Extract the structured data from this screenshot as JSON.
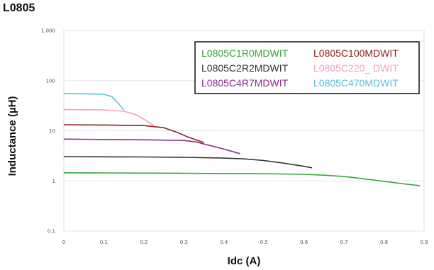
{
  "title": "L0805",
  "chart_data": {
    "type": "line",
    "xlabel": "Idc (A)",
    "ylabel": "Inductance (µH)",
    "xlim": [
      0,
      0.9
    ],
    "ylim": [
      0.1,
      1000
    ],
    "yscale": "log",
    "x_ticks": [
      "0",
      "0.1",
      "0.2",
      "0.3",
      "0.4",
      "0.5",
      "0.6",
      "0.7",
      "0.8",
      "0.9"
    ],
    "y_ticks": [
      "0.1",
      "1",
      "10",
      "100",
      "1,000"
    ],
    "grid": true,
    "legend_position": "top-right",
    "series": [
      {
        "name": "L0805C1R0MDWIT",
        "color": "#3aa43a",
        "x": [
          0,
          0.1,
          0.2,
          0.3,
          0.4,
          0.5,
          0.6,
          0.65,
          0.7,
          0.75,
          0.8,
          0.85,
          0.89
        ],
        "y": [
          1.45,
          1.44,
          1.43,
          1.42,
          1.4,
          1.39,
          1.35,
          1.3,
          1.22,
          1.1,
          0.98,
          0.87,
          0.8
        ]
      },
      {
        "name": "L0805C2R2MDWIT",
        "color": "#333333",
        "x": [
          0,
          0.1,
          0.2,
          0.3,
          0.4,
          0.45,
          0.5,
          0.55,
          0.6,
          0.62
        ],
        "y": [
          3.05,
          3.02,
          3.0,
          2.95,
          2.85,
          2.75,
          2.55,
          2.25,
          1.95,
          1.82
        ]
      },
      {
        "name": "L0805C4R7MDWIT",
        "color": "#8b2a8b",
        "x": [
          0,
          0.1,
          0.2,
          0.3,
          0.33,
          0.36,
          0.4,
          0.44
        ],
        "y": [
          6.8,
          6.7,
          6.6,
          6.4,
          6.0,
          5.2,
          4.3,
          3.5
        ]
      },
      {
        "name": "L0805C100MDWIT",
        "color": "#8b2020",
        "x": [
          0,
          0.1,
          0.2,
          0.25,
          0.28,
          0.31,
          0.35
        ],
        "y": [
          13.2,
          13.0,
          12.7,
          11.5,
          9.5,
          7.5,
          5.8
        ]
      },
      {
        "name": "L0805C220_ DWIT",
        "color": "#f4a0b8",
        "x": [
          0,
          0.1,
          0.15,
          0.18,
          0.2,
          0.225
        ],
        "y": [
          26.5,
          26.0,
          24.5,
          21.0,
          17.0,
          12.5
        ]
      },
      {
        "name": "L0805C470MDWIT",
        "color": "#5bc0d8",
        "x": [
          0,
          0.05,
          0.1,
          0.12,
          0.135,
          0.15
        ],
        "y": [
          55,
          54.5,
          53.5,
          48,
          36,
          26
        ]
      }
    ]
  }
}
